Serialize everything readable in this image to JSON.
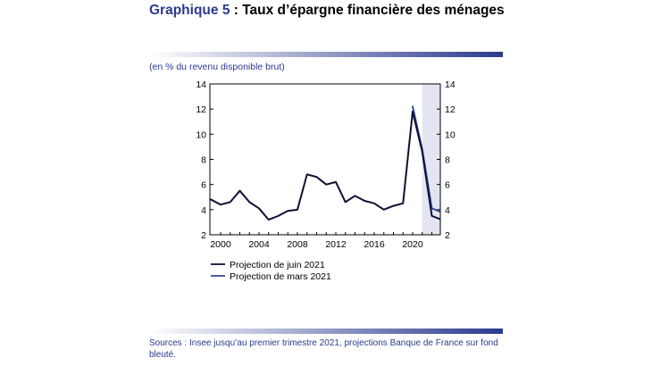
{
  "header": {
    "title_lead": "Graphique 5",
    "title_rest": " : Taux d’épargne financière des ménages"
  },
  "unit_note": "(en % du revenu disponible brut)",
  "legend": {
    "juin": "Projection de juin 2021",
    "mars": "Projection de mars 2021"
  },
  "source": "Sources :  Insee jusqu’au premier trimestre 2021, projections Banque de France sur fond bleuté.",
  "colors": {
    "accent": "#2b3a8e",
    "juin": "#0d1033",
    "mars": "#3a4a9f",
    "projection_band": "#e3e6f1"
  },
  "chart_data": {
    "type": "line",
    "title": "Taux d’épargne financière des ménages",
    "ylabel": "(en % du revenu disponible brut)",
    "xlim": [
      2000,
      2023
    ],
    "ylim": [
      2,
      14
    ],
    "x_ticks": [
      2000,
      2004,
      2008,
      2012,
      2016,
      2020
    ],
    "y_ticks": [
      2,
      4,
      6,
      8,
      10,
      12,
      14
    ],
    "projection_shading_from": 2021,
    "legend_position": "bottom-left",
    "grid": false,
    "series": [
      {
        "name": "Projection de juin 2021",
        "x": [
          1999,
          2000,
          2001,
          2002,
          2003,
          2004,
          2005,
          2006,
          2007,
          2008,
          2009,
          2010,
          2011,
          2012,
          2013,
          2014,
          2015,
          2016,
          2017,
          2018,
          2019,
          2020,
          2021,
          2022,
          2023
        ],
        "values": [
          4.8,
          4.4,
          4.6,
          5.5,
          4.6,
          4.1,
          3.2,
          3.5,
          3.9,
          4.0,
          6.8,
          6.6,
          6.0,
          6.2,
          4.6,
          5.1,
          4.7,
          4.5,
          4.0,
          4.3,
          4.5,
          11.8,
          8.6,
          3.5,
          3.2
        ]
      },
      {
        "name": "Projection de mars 2021",
        "x": [
          2020,
          2021,
          2022,
          2023
        ],
        "values": [
          12.2,
          8.8,
          4.1,
          3.8
        ]
      }
    ]
  }
}
